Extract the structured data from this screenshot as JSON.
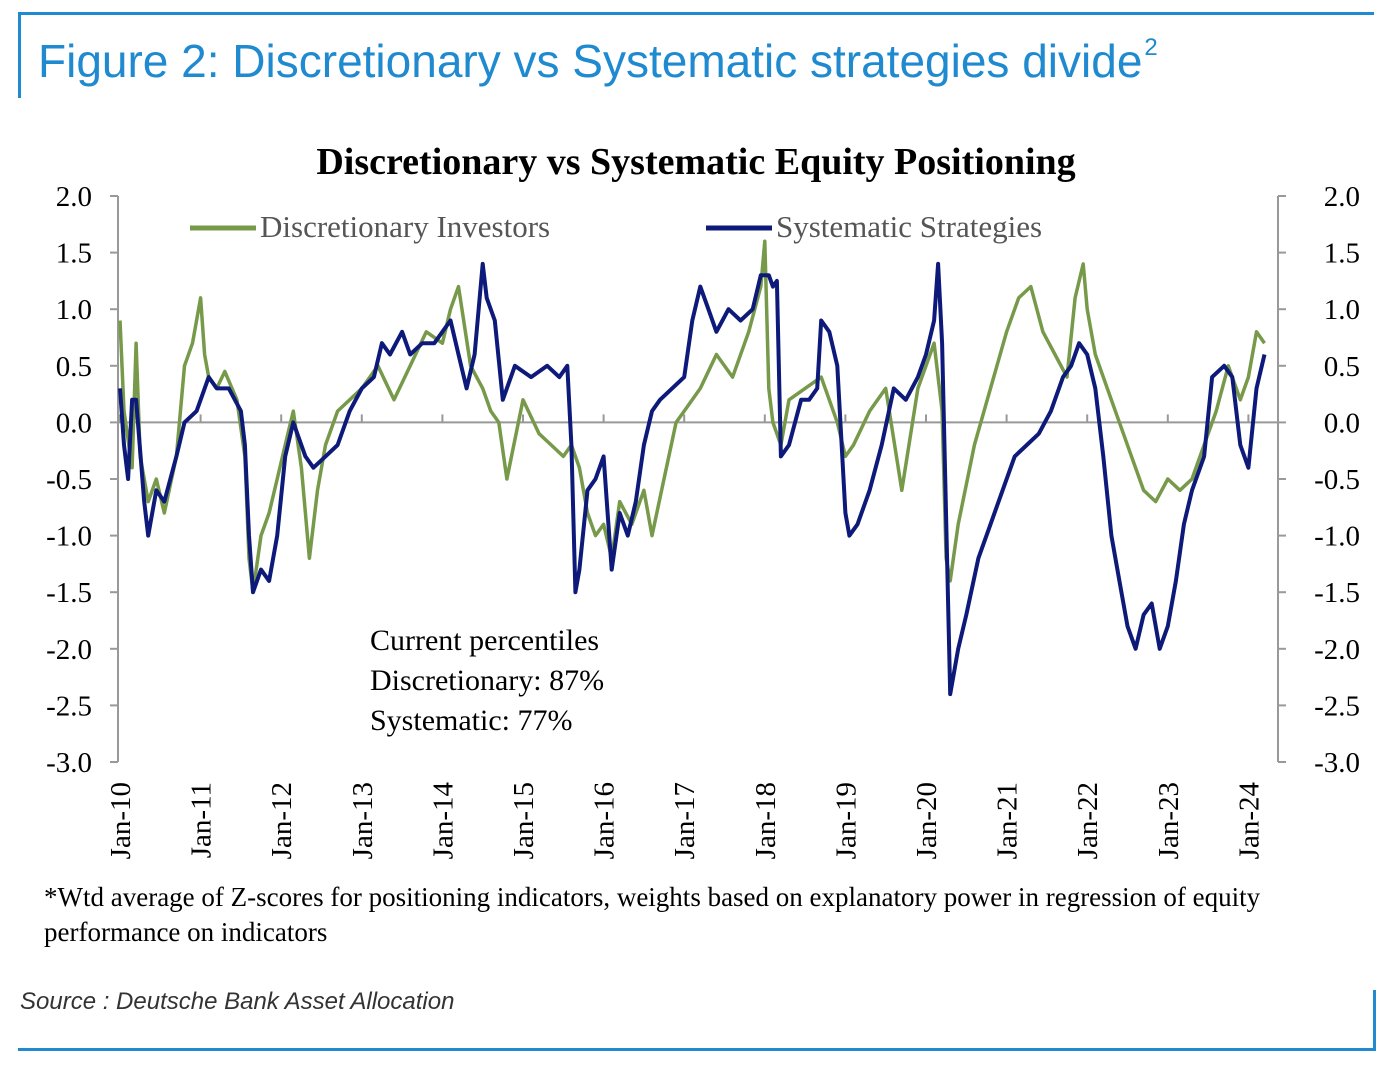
{
  "figure": {
    "title": "Figure 2: Discretionary vs Systematic strategies divide",
    "title_superscript": "2",
    "footnote": "*Wtd average of Z-scores for positioning indicators, weights based on explanatory power in regression of equity performance on indicators",
    "source": "Source : Deutsche Bank Asset Allocation",
    "accent_color": "#1f8ad0"
  },
  "chart_data": {
    "type": "line",
    "title": "Discretionary  vs Systematic Equity Positioning",
    "ylim": [
      -3.0,
      2.0
    ],
    "y_ticks": [
      "2.0",
      "1.5",
      "1.0",
      "0.5",
      "0.0",
      "-0.5",
      "-1.0",
      "-1.5",
      "-2.0",
      "-2.5",
      "-3.0"
    ],
    "x_ticks": [
      "Jan-10",
      "Jan-11",
      "Jan-12",
      "Jan-13",
      "Jan-14",
      "Jan-15",
      "Jan-16",
      "Jan-17",
      "Jan-18",
      "Jan-19",
      "Jan-20",
      "Jan-21",
      "Jan-22",
      "Jan-23",
      "Jan-24"
    ],
    "xlim": [
      2010.0,
      2024.3
    ],
    "grid": false,
    "legend_position": "top",
    "annotation": [
      "Current percentiles",
      "Discretionary: 87%",
      "Systematic: 77%"
    ],
    "series": [
      {
        "name": "Discretionary Investors",
        "color": "#77994a",
        "x": [
          2010.0,
          2010.05,
          2010.15,
          2010.2,
          2010.25,
          2010.35,
          2010.45,
          2010.55,
          2010.7,
          2010.8,
          2010.9,
          2011.0,
          2011.05,
          2011.1,
          2011.2,
          2011.3,
          2011.45,
          2011.55,
          2011.6,
          2011.65,
          2011.75,
          2011.85,
          2011.95,
          2012.05,
          2012.15,
          2012.25,
          2012.35,
          2012.45,
          2012.55,
          2012.7,
          2012.85,
          2013.0,
          2013.2,
          2013.4,
          2013.6,
          2013.8,
          2014.0,
          2014.1,
          2014.2,
          2014.35,
          2014.5,
          2014.6,
          2014.7,
          2014.8,
          2015.0,
          2015.2,
          2015.35,
          2015.5,
          2015.6,
          2015.7,
          2015.8,
          2015.9,
          2016.0,
          2016.1,
          2016.2,
          2016.35,
          2016.5,
          2016.6,
          2016.75,
          2016.9,
          2017.0,
          2017.2,
          2017.4,
          2017.6,
          2017.8,
          2017.95,
          2018.0,
          2018.05,
          2018.1,
          2018.2,
          2018.3,
          2018.5,
          2018.7,
          2018.9,
          2019.0,
          2019.1,
          2019.3,
          2019.5,
          2019.7,
          2019.9,
          2020.0,
          2020.1,
          2020.2,
          2020.25,
          2020.3,
          2020.4,
          2020.6,
          2020.8,
          2021.0,
          2021.15,
          2021.3,
          2021.45,
          2021.6,
          2021.75,
          2021.85,
          2021.95,
          2022.0,
          2022.1,
          2022.25,
          2022.4,
          2022.55,
          2022.7,
          2022.85,
          2023.0,
          2023.15,
          2023.3,
          2023.45,
          2023.6,
          2023.75,
          2023.9,
          2024.0,
          2024.1,
          2024.2
        ],
        "y": [
          0.9,
          0.1,
          -0.4,
          0.7,
          -0.3,
          -0.7,
          -0.5,
          -0.8,
          -0.3,
          0.5,
          0.7,
          1.1,
          0.6,
          0.4,
          0.3,
          0.45,
          0.2,
          -0.3,
          -1.2,
          -1.5,
          -1.0,
          -0.8,
          -0.5,
          -0.2,
          0.1,
          -0.4,
          -1.2,
          -0.6,
          -0.2,
          0.1,
          0.2,
          0.3,
          0.5,
          0.2,
          0.5,
          0.8,
          0.7,
          1.0,
          1.2,
          0.5,
          0.3,
          0.1,
          0.0,
          -0.5,
          0.2,
          -0.1,
          -0.2,
          -0.3,
          -0.2,
          -0.4,
          -0.8,
          -1.0,
          -0.9,
          -1.2,
          -0.7,
          -0.9,
          -0.6,
          -1.0,
          -0.5,
          0.0,
          0.1,
          0.3,
          0.6,
          0.4,
          0.8,
          1.2,
          1.6,
          0.3,
          0.0,
          -0.2,
          0.2,
          0.3,
          0.4,
          0.0,
          -0.3,
          -0.2,
          0.1,
          0.3,
          -0.6,
          0.3,
          0.5,
          0.7,
          0.1,
          -1.2,
          -1.4,
          -0.9,
          -0.2,
          0.3,
          0.8,
          1.1,
          1.2,
          0.8,
          0.6,
          0.4,
          1.1,
          1.4,
          1.0,
          0.6,
          0.3,
          0.0,
          -0.3,
          -0.6,
          -0.7,
          -0.5,
          -0.6,
          -0.5,
          -0.2,
          0.1,
          0.5,
          0.2,
          0.4,
          0.8,
          0.7
        ]
      },
      {
        "name": "Systematic Strategies",
        "color": "#0d1a7a",
        "x": [
          2010.0,
          2010.05,
          2010.1,
          2010.15,
          2010.2,
          2010.3,
          2010.35,
          2010.45,
          2010.55,
          2010.7,
          2010.8,
          2010.95,
          2011.1,
          2011.2,
          2011.35,
          2011.5,
          2011.55,
          2011.6,
          2011.65,
          2011.75,
          2011.85,
          2011.95,
          2012.05,
          2012.15,
          2012.3,
          2012.4,
          2012.55,
          2012.7,
          2012.85,
          2013.0,
          2013.15,
          2013.25,
          2013.35,
          2013.5,
          2013.6,
          2013.75,
          2013.9,
          2014.0,
          2014.1,
          2014.2,
          2014.3,
          2014.4,
          2014.5,
          2014.55,
          2014.65,
          2014.75,
          2014.9,
          2015.1,
          2015.3,
          2015.45,
          2015.55,
          2015.6,
          2015.65,
          2015.7,
          2015.8,
          2015.9,
          2016.0,
          2016.05,
          2016.1,
          2016.2,
          2016.3,
          2016.4,
          2016.5,
          2016.6,
          2016.7,
          2016.85,
          2017.0,
          2017.1,
          2017.2,
          2017.3,
          2017.4,
          2017.55,
          2017.7,
          2017.85,
          2017.95,
          2018.05,
          2018.1,
          2018.15,
          2018.2,
          2018.3,
          2018.45,
          2018.55,
          2018.65,
          2018.7,
          2018.8,
          2018.9,
          2019.0,
          2019.05,
          2019.15,
          2019.3,
          2019.45,
          2019.6,
          2019.75,
          2019.9,
          2020.0,
          2020.1,
          2020.15,
          2020.2,
          2020.3,
          2020.4,
          2020.5,
          2020.65,
          2020.8,
          2020.95,
          2021.1,
          2021.25,
          2021.4,
          2021.55,
          2021.7,
          2021.8,
          2021.9,
          2022.0,
          2022.1,
          2022.2,
          2022.3,
          2022.4,
          2022.5,
          2022.6,
          2022.7,
          2022.8,
          2022.9,
          2023.0,
          2023.1,
          2023.2,
          2023.3,
          2023.45,
          2023.55,
          2023.7,
          2023.8,
          2023.9,
          2024.0,
          2024.1,
          2024.2
        ],
        "y": [
          0.3,
          -0.2,
          -0.5,
          0.2,
          0.2,
          -0.7,
          -1.0,
          -0.6,
          -0.7,
          -0.3,
          0.0,
          0.1,
          0.4,
          0.3,
          0.3,
          0.1,
          -0.2,
          -1.0,
          -1.5,
          -1.3,
          -1.4,
          -1.0,
          -0.3,
          0.0,
          -0.3,
          -0.4,
          -0.3,
          -0.2,
          0.1,
          0.3,
          0.4,
          0.7,
          0.6,
          0.8,
          0.6,
          0.7,
          0.7,
          0.8,
          0.9,
          0.6,
          0.3,
          0.6,
          1.4,
          1.1,
          0.9,
          0.2,
          0.5,
          0.4,
          0.5,
          0.4,
          0.5,
          -0.2,
          -1.5,
          -1.3,
          -0.6,
          -0.5,
          -0.3,
          -0.8,
          -1.3,
          -0.8,
          -1.0,
          -0.7,
          -0.2,
          0.1,
          0.2,
          0.3,
          0.4,
          0.9,
          1.2,
          1.0,
          0.8,
          1.0,
          0.9,
          1.0,
          1.3,
          1.3,
          1.2,
          1.25,
          -0.3,
          -0.2,
          0.2,
          0.2,
          0.3,
          0.9,
          0.8,
          0.5,
          -0.8,
          -1.0,
          -0.9,
          -0.6,
          -0.2,
          0.3,
          0.2,
          0.4,
          0.6,
          0.9,
          1.4,
          0.7,
          -2.4,
          -2.0,
          -1.7,
          -1.2,
          -0.9,
          -0.6,
          -0.3,
          -0.2,
          -0.1,
          0.1,
          0.4,
          0.5,
          0.7,
          0.6,
          0.3,
          -0.3,
          -1.0,
          -1.4,
          -1.8,
          -2.0,
          -1.7,
          -1.6,
          -2.0,
          -1.8,
          -1.4,
          -0.9,
          -0.6,
          -0.3,
          0.4,
          0.5,
          0.4,
          -0.2,
          -0.4,
          0.3,
          0.6
        ]
      }
    ]
  }
}
